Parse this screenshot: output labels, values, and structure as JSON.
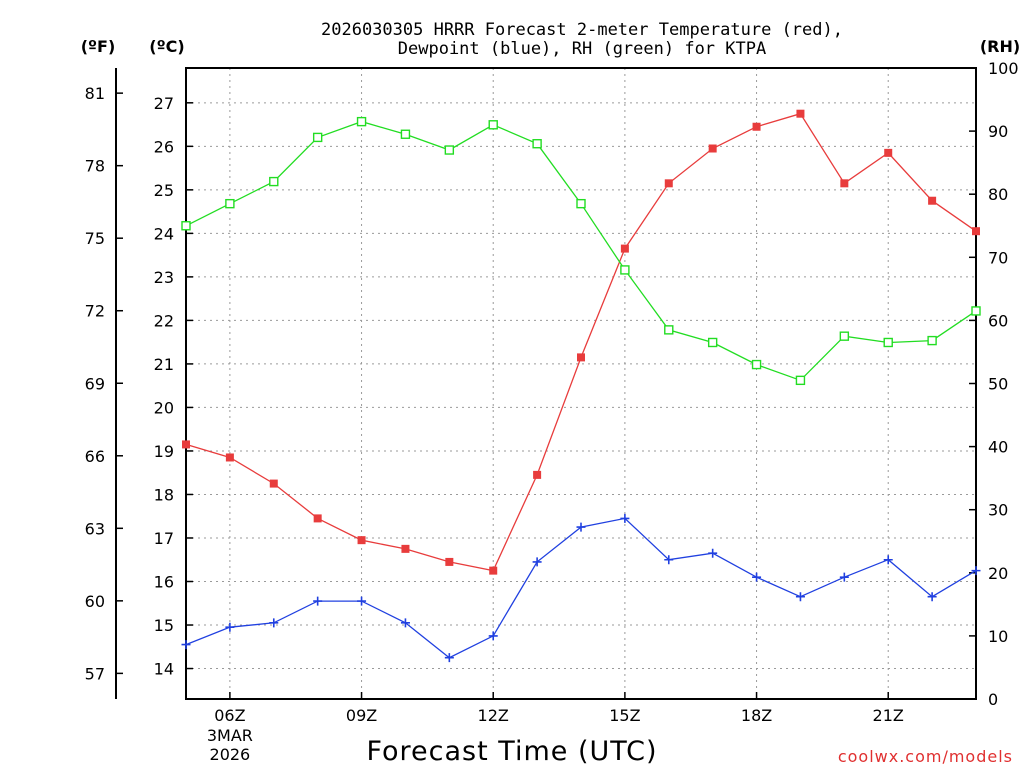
{
  "chart_data": {
    "type": "line",
    "title": [
      "2026030305 HRRR Forecast 2-meter Temperature (red),",
      "Dewpoint (blue), RH (green) for KTPA"
    ],
    "xlabel": "Forecast Time (UTC)",
    "credit": "coolwx.com/models",
    "x_hours": [
      5,
      6,
      7,
      8,
      9,
      10,
      11,
      12,
      13,
      14,
      15,
      16,
      17,
      18,
      19,
      20,
      21,
      22,
      23
    ],
    "xlim": [
      5,
      23
    ],
    "x_ticks": [
      {
        "hour": 6,
        "label": "06Z",
        "sub": [
          "3MAR",
          "2026"
        ]
      },
      {
        "hour": 9,
        "label": "09Z"
      },
      {
        "hour": 12,
        "label": "12Z"
      },
      {
        "hour": 15,
        "label": "15Z"
      },
      {
        "hour": 18,
        "label": "18Z"
      },
      {
        "hour": 21,
        "label": "21Z"
      }
    ],
    "celsius_axis": {
      "unit": "(ºC)",
      "ylim": [
        13.3,
        27.8
      ],
      "ticks": [
        14,
        15,
        16,
        17,
        18,
        19,
        20,
        21,
        22,
        23,
        24,
        25,
        26,
        27
      ]
    },
    "fahrenheit_axis": {
      "unit": "(ºF)",
      "ticks": [
        57,
        60,
        63,
        66,
        69,
        72,
        75,
        78,
        81
      ]
    },
    "rh_axis": {
      "unit": "(RH)",
      "ylim": [
        0,
        100
      ],
      "ticks": [
        0,
        10,
        20,
        30,
        40,
        50,
        60,
        70,
        80,
        90,
        100
      ]
    },
    "series": [
      {
        "name": "Temperature",
        "unit": "C",
        "color": "#e83c3c",
        "marker": "filled-square",
        "values": [
          19.15,
          18.85,
          18.25,
          17.45,
          16.95,
          16.75,
          16.45,
          16.25,
          18.45,
          21.15,
          23.65,
          25.15,
          25.95,
          26.45,
          26.75,
          25.15,
          25.85,
          24.75,
          24.05
        ]
      },
      {
        "name": "Dewpoint",
        "unit": "C",
        "color": "#2040e0",
        "marker": "plus",
        "values": [
          14.55,
          14.95,
          15.05,
          15.55,
          15.55,
          15.05,
          14.25,
          14.75,
          16.45,
          17.25,
          17.45,
          16.5,
          16.65,
          16.1,
          15.65,
          16.1,
          16.5,
          15.65,
          16.25
        ]
      },
      {
        "name": "Relative Humidity",
        "unit": "%",
        "color": "#22dd22",
        "marker": "open-square",
        "values": [
          75,
          78.5,
          82,
          89,
          91.5,
          89.5,
          87,
          91,
          88,
          78.5,
          68,
          58.5,
          56.5,
          53,
          50.5,
          57.5,
          56.5,
          56.8,
          61.5
        ]
      }
    ]
  }
}
